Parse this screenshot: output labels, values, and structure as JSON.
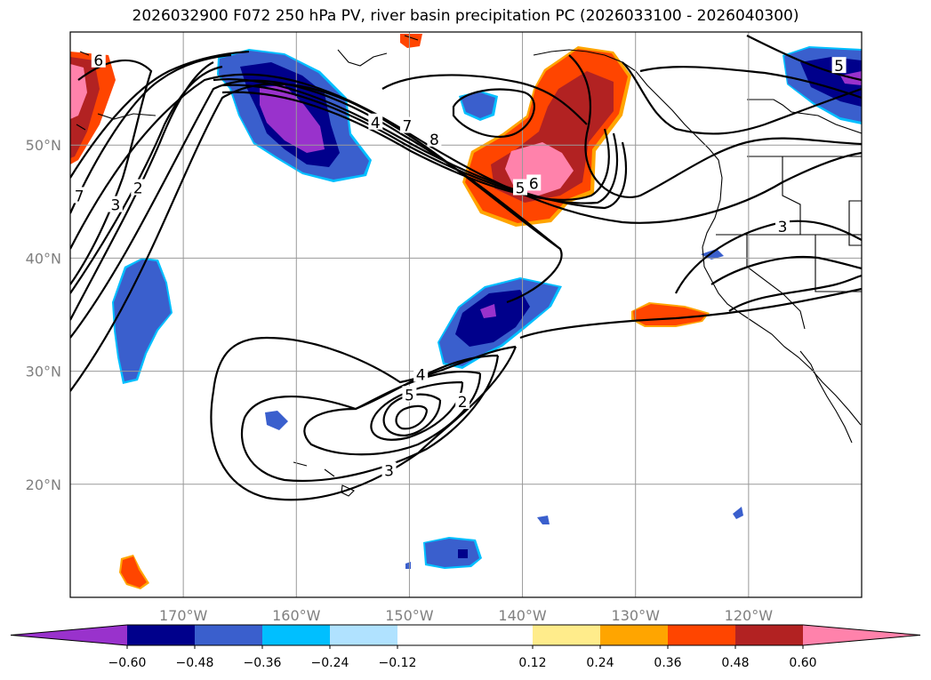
{
  "chart_data": {
    "type": "map-contour",
    "title": "2026032900 F072 250 hPa PV, river basin precipitation PC (2026033100 - 2026040300)",
    "x_axis": {
      "range": [
        -180,
        -110
      ],
      "ticks": [
        -170,
        -160,
        -150,
        -140,
        -130,
        -120
      ],
      "tick_labels": [
        "170°W",
        "160°W",
        "150°W",
        "140°W",
        "130°W",
        "120°W"
      ]
    },
    "y_axis": {
      "range": [
        10,
        60
      ],
      "ticks": [
        20,
        30,
        40,
        50
      ],
      "tick_labels": [
        "20°N",
        "30°N",
        "40°N",
        "50°N"
      ]
    },
    "grid": true,
    "contour_labels": [
      {
        "text": "6",
        "lon": -177.5,
        "lat": 57.5
      },
      {
        "text": "7",
        "lon": -179.2,
        "lat": 45.5
      },
      {
        "text": "3",
        "lon": -176.0,
        "lat": 44.7
      },
      {
        "text": "2",
        "lon": -174.0,
        "lat": 46.2
      },
      {
        "text": "4",
        "lon": -153.0,
        "lat": 52.0
      },
      {
        "text": "7",
        "lon": -150.2,
        "lat": 51.7
      },
      {
        "text": "8",
        "lon": -147.8,
        "lat": 50.5
      },
      {
        "text": "5",
        "lon": -140.2,
        "lat": 46.2
      },
      {
        "text": "6",
        "lon": -139.0,
        "lat": 46.6
      },
      {
        "text": "3",
        "lon": -117.0,
        "lat": 42.8
      },
      {
        "text": "5",
        "lon": -150.0,
        "lat": 27.9
      },
      {
        "text": "4",
        "lon": -149.0,
        "lat": 29.7
      },
      {
        "text": "2",
        "lon": -145.3,
        "lat": 27.3
      },
      {
        "text": "3",
        "lon": -151.8,
        "lat": 21.2
      },
      {
        "text": "5",
        "lon": -112.0,
        "lat": 57.0
      }
    ],
    "colorbar": {
      "ticks": [
        -0.6,
        -0.48,
        -0.36,
        -0.24,
        -0.12,
        0.12,
        0.24,
        0.36,
        0.48,
        0.6
      ],
      "tick_labels": [
        "−0.60",
        "−0.48",
        "−0.36",
        "−0.24",
        "−0.12",
        "0.12",
        "0.24",
        "0.36",
        "0.48",
        "0.60"
      ],
      "colors": [
        "#9932cc",
        "#00008b",
        "#3a5fcd",
        "#00bfff",
        "#b0e2ff",
        "#ffffff",
        "#ffec8b",
        "#ffa500",
        "#ff4500",
        "#b22222",
        "#ff82ab"
      ],
      "extend": "both"
    }
  }
}
